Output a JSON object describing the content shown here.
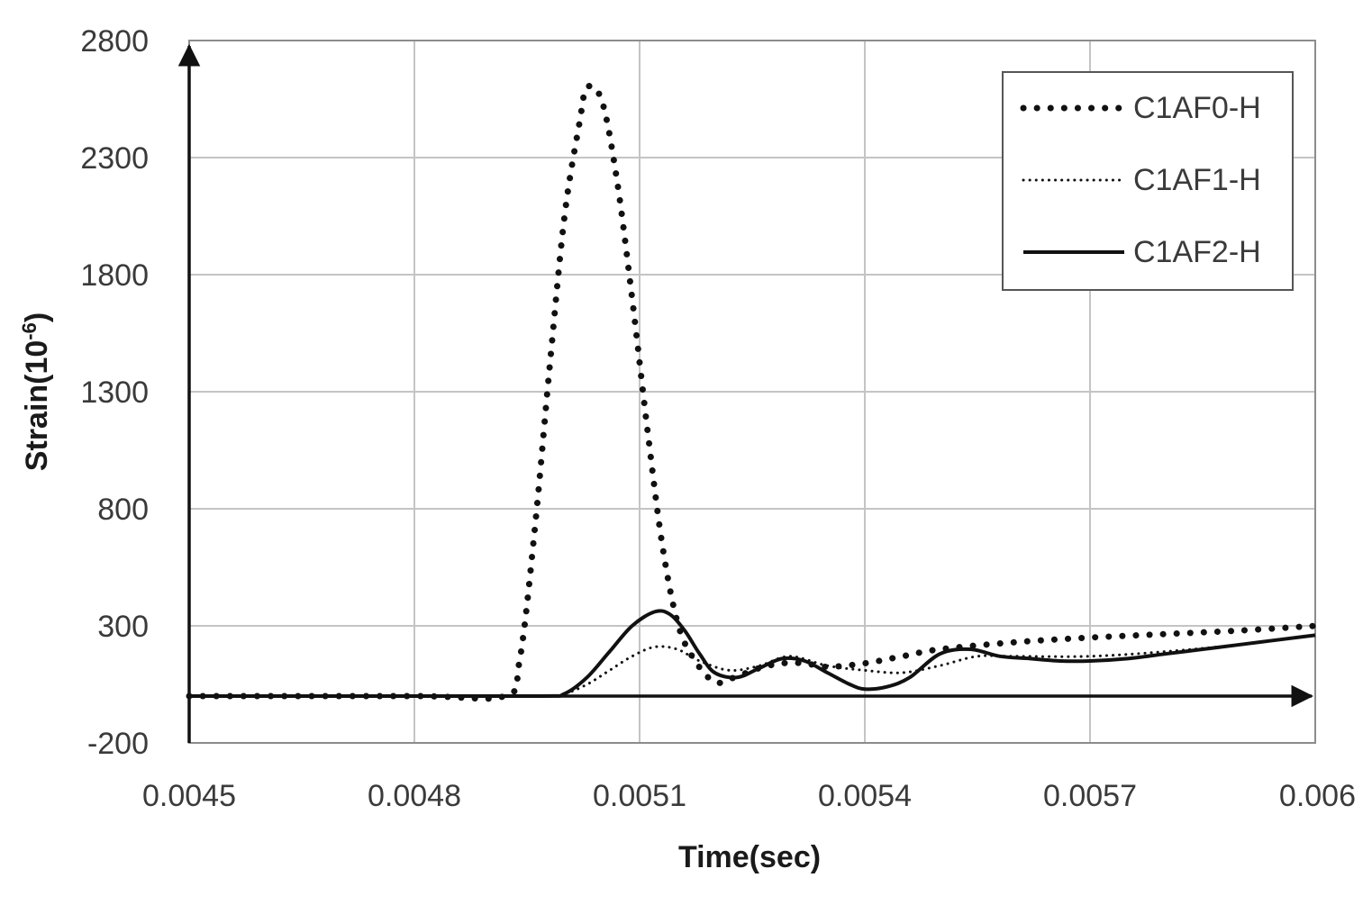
{
  "chart_data": {
    "type": "line",
    "xlabel": "Time(sec)",
    "ylabel": "Strain(10",
    "ylabel_exp": "-6",
    "ylabel_close": ")",
    "xlim": [
      0.0045,
      0.006
    ],
    "ylim": [
      -200,
      2800
    ],
    "x_ticks": [
      "0.0045",
      "0.0048",
      "0.0051",
      "0.0054",
      "0.0057",
      "0.006"
    ],
    "y_ticks": [
      "2800",
      "2300",
      "1800",
      "1300",
      "800",
      "300",
      "-200"
    ],
    "x_tick_values": [
      0.0045,
      0.0048,
      0.0051,
      0.0054,
      0.0057,
      0.006
    ],
    "y_tick_values": [
      2800,
      2300,
      1800,
      1300,
      800,
      300,
      -200
    ],
    "grid": true,
    "legend_position": "top-right",
    "series": [
      {
        "name": "C1AF0-H",
        "style": "dotted-heavy",
        "x": [
          0.0045,
          0.0048,
          0.00492,
          0.00494,
          0.00496,
          0.00498,
          0.005,
          0.00502,
          0.00503,
          0.00505,
          0.00507,
          0.00509,
          0.00511,
          0.00513,
          0.00515,
          0.00517,
          0.0052,
          0.00523,
          0.00526,
          0.00529,
          0.00532,
          0.00535,
          0.0054,
          0.00545,
          0.0055,
          0.0056,
          0.0057,
          0.0058,
          0.0059,
          0.006
        ],
        "y": [
          0,
          0,
          0,
          150,
          700,
          1400,
          2050,
          2450,
          2600,
          2540,
          2200,
          1700,
          1150,
          650,
          320,
          170,
          60,
          85,
          120,
          140,
          140,
          125,
          140,
          170,
          200,
          230,
          250,
          265,
          280,
          300
        ]
      },
      {
        "name": "C1AF1-H",
        "style": "dotted-thin",
        "x": [
          0.0045,
          0.0048,
          0.00497,
          0.005,
          0.00503,
          0.00506,
          0.00509,
          0.00512,
          0.00515,
          0.00518,
          0.00522,
          0.00526,
          0.0053,
          0.00535,
          0.0054,
          0.00545,
          0.0055,
          0.00555,
          0.0056,
          0.0057,
          0.0058,
          0.0059,
          0.006
        ],
        "y": [
          0,
          0,
          0,
          10,
          50,
          110,
          170,
          210,
          200,
          150,
          110,
          130,
          170,
          130,
          110,
          100,
          130,
          170,
          170,
          170,
          190,
          220,
          260
        ]
      },
      {
        "name": "C1AF2-H",
        "style": "solid",
        "x": [
          0.0045,
          0.0048,
          0.00497,
          0.005,
          0.00503,
          0.00506,
          0.00509,
          0.00512,
          0.00514,
          0.00516,
          0.00518,
          0.0052,
          0.00523,
          0.00526,
          0.00529,
          0.00532,
          0.00535,
          0.00538,
          0.0054,
          0.00543,
          0.00546,
          0.0055,
          0.00554,
          0.00558,
          0.00562,
          0.00566,
          0.0057,
          0.00575,
          0.0058,
          0.00585,
          0.0059,
          0.006
        ],
        "y": [
          0,
          0,
          0,
          10,
          80,
          190,
          300,
          360,
          350,
          280,
          180,
          100,
          80,
          120,
          160,
          150,
          100,
          50,
          30,
          40,
          80,
          180,
          200,
          170,
          160,
          150,
          150,
          160,
          180,
          200,
          220,
          260
        ]
      }
    ]
  }
}
